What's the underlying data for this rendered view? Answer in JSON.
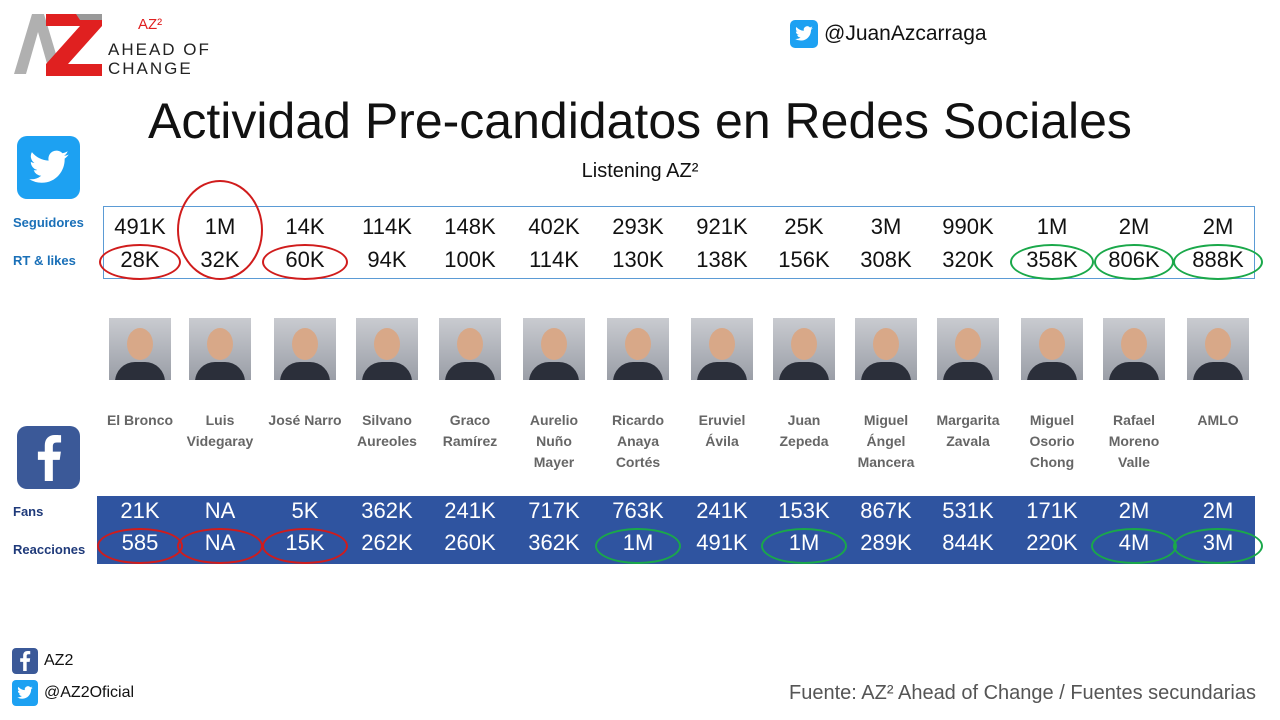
{
  "logo": {
    "sup": "AZ²",
    "line1": "AHEAD OF",
    "line2": "CHANGE",
    "accent": "#e02020"
  },
  "twitter_handle": "@JuanAzcarraga",
  "title": "Actividad Pre-candidatos en Redes Sociales",
  "subtitle": "Listening AZ²",
  "twitter": {
    "row1_label": "Seguidores",
    "row2_label": "RT & likes",
    "seguidores": [
      "491K",
      "1M",
      "14K",
      "114K",
      "148K",
      "402K",
      "293K",
      "921K",
      "25K",
      "3M",
      "990K",
      "1M",
      "2M",
      "2M"
    ],
    "rt_likes": [
      "28K",
      "32K",
      "60K",
      "94K",
      "100K",
      "114K",
      "130K",
      "138K",
      "156K",
      "308K",
      "320K",
      "358K",
      "806K",
      "888K"
    ]
  },
  "candidates": [
    {
      "name1": "El Bronco",
      "name2": "",
      "name3": ""
    },
    {
      "name1": "Luis",
      "name2": "Videgaray",
      "name3": ""
    },
    {
      "name1": "José Narro",
      "name2": "",
      "name3": ""
    },
    {
      "name1": "Silvano",
      "name2": "Aureoles",
      "name3": ""
    },
    {
      "name1": "Graco",
      "name2": "Ramírez",
      "name3": ""
    },
    {
      "name1": "Aurelio",
      "name2": "Nuño",
      "name3": "Mayer"
    },
    {
      "name1": "Ricardo",
      "name2": "Anaya",
      "name3": "Cortés"
    },
    {
      "name1": "Eruviel",
      "name2": "Ávila",
      "name3": ""
    },
    {
      "name1": "Juan",
      "name2": "Zepeda",
      "name3": ""
    },
    {
      "name1": "Miguel",
      "name2": "Ángel",
      "name3": "Mancera"
    },
    {
      "name1": "Margarita",
      "name2": "Zavala",
      "name3": ""
    },
    {
      "name1": "Miguel",
      "name2": "Osorio",
      "name3": "Chong"
    },
    {
      "name1": "Rafael",
      "name2": "Moreno",
      "name3": "Valle"
    },
    {
      "name1": "AMLO",
      "name2": "",
      "name3": ""
    }
  ],
  "facebook": {
    "row1_label": "Fans",
    "row2_label": "Reacciones",
    "fans": [
      "21K",
      "NA",
      "5K",
      "362K",
      "241K",
      "717K",
      "763K",
      "241K",
      "153K",
      "867K",
      "531K",
      "171K",
      "2M",
      "2M"
    ],
    "reacciones": [
      "585",
      "NA",
      "15K",
      "262K",
      "260K",
      "362K",
      "1M",
      "491K",
      "1M",
      "289K",
      "844K",
      "220K",
      "4M",
      "3M"
    ]
  },
  "footer": {
    "fb_account": "AZ2",
    "tw_account": "@AZ2Oficial",
    "source": "Fuente: AZ² Ahead of Change / Fuentes secundarias"
  },
  "colors": {
    "twitter_blue": "#1da1f2",
    "facebook_blue": "#2f54a0",
    "highlight_low": "#d01c1c",
    "highlight_high": "#1aa84a"
  }
}
